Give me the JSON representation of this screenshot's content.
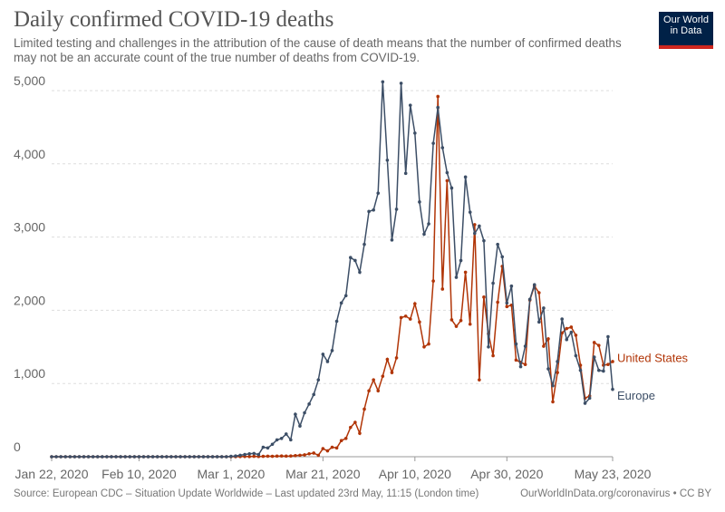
{
  "chart_data": {
    "type": "line",
    "title": "Daily confirmed COVID-19 deaths",
    "subtitle": "Limited testing and challenges in the attribution of the cause of death means that the number of confirmed deaths may not be an accurate count of the true number of deaths from COVID-19.",
    "logo": [
      "Our World",
      "in Data"
    ],
    "source": "Source: European CDC – Situation Update Worldwide – Last updated 23rd May, 11:15 (London time)",
    "license": "OurWorldInData.org/coronavirus • CC BY",
    "x": [
      "2020-01-22",
      "2020-01-23",
      "2020-01-24",
      "2020-01-25",
      "2020-01-26",
      "2020-01-27",
      "2020-01-28",
      "2020-01-29",
      "2020-01-30",
      "2020-01-31",
      "2020-02-01",
      "2020-02-02",
      "2020-02-03",
      "2020-02-04",
      "2020-02-05",
      "2020-02-06",
      "2020-02-07",
      "2020-02-08",
      "2020-02-09",
      "2020-02-10",
      "2020-02-11",
      "2020-02-12",
      "2020-02-13",
      "2020-02-14",
      "2020-02-15",
      "2020-02-16",
      "2020-02-17",
      "2020-02-18",
      "2020-02-19",
      "2020-02-20",
      "2020-02-21",
      "2020-02-22",
      "2020-02-23",
      "2020-02-24",
      "2020-02-25",
      "2020-02-26",
      "2020-02-27",
      "2020-02-28",
      "2020-02-29",
      "2020-03-01",
      "2020-03-02",
      "2020-03-03",
      "2020-03-04",
      "2020-03-05",
      "2020-03-06",
      "2020-03-07",
      "2020-03-08",
      "2020-03-09",
      "2020-03-10",
      "2020-03-11",
      "2020-03-12",
      "2020-03-13",
      "2020-03-14",
      "2020-03-15",
      "2020-03-16",
      "2020-03-17",
      "2020-03-18",
      "2020-03-19",
      "2020-03-20",
      "2020-03-21",
      "2020-03-22",
      "2020-03-23",
      "2020-03-24",
      "2020-03-25",
      "2020-03-26",
      "2020-03-27",
      "2020-03-28",
      "2020-03-29",
      "2020-03-30",
      "2020-03-31",
      "2020-04-01",
      "2020-04-02",
      "2020-04-03",
      "2020-04-04",
      "2020-04-05",
      "2020-04-06",
      "2020-04-07",
      "2020-04-08",
      "2020-04-09",
      "2020-04-10",
      "2020-04-11",
      "2020-04-12",
      "2020-04-13",
      "2020-04-14",
      "2020-04-15",
      "2020-04-16",
      "2020-04-17",
      "2020-04-18",
      "2020-04-19",
      "2020-04-20",
      "2020-04-21",
      "2020-04-22",
      "2020-04-23",
      "2020-04-24",
      "2020-04-25",
      "2020-04-26",
      "2020-04-27",
      "2020-04-28",
      "2020-04-29",
      "2020-04-30",
      "2020-05-01",
      "2020-05-02",
      "2020-05-03",
      "2020-05-04",
      "2020-05-05",
      "2020-05-06",
      "2020-05-07",
      "2020-05-08",
      "2020-05-09",
      "2020-05-10",
      "2020-05-11",
      "2020-05-12",
      "2020-05-13",
      "2020-05-14",
      "2020-05-15",
      "2020-05-16",
      "2020-05-17",
      "2020-05-18",
      "2020-05-19",
      "2020-05-20",
      "2020-05-21",
      "2020-05-22",
      "2020-05-23"
    ],
    "series": [
      {
        "name": "United States",
        "color": "#b13507",
        "values": [
          0,
          0,
          0,
          0,
          0,
          0,
          0,
          0,
          0,
          0,
          0,
          0,
          0,
          0,
          0,
          0,
          0,
          0,
          0,
          0,
          0,
          0,
          0,
          0,
          0,
          0,
          0,
          0,
          0,
          0,
          0,
          0,
          0,
          0,
          0,
          0,
          0,
          0,
          0,
          1,
          0,
          2,
          3,
          2,
          5,
          3,
          5,
          7,
          6,
          8,
          10,
          8,
          10,
          15,
          20,
          25,
          40,
          50,
          20,
          110,
          80,
          130,
          120,
          220,
          250,
          400,
          470,
          320,
          650,
          900,
          1050,
          900,
          1100,
          1330,
          1150,
          1350,
          1900,
          1920,
          1880,
          2090,
          1840,
          1500,
          1540,
          2400,
          4920,
          2290,
          3770,
          1870,
          1780,
          1860,
          2520,
          1810,
          3170,
          1050,
          2180,
          1680,
          1380,
          2110,
          2600,
          2050,
          2070,
          1320,
          1290,
          1260,
          2140,
          2330,
          2240,
          1510,
          1610,
          750,
          1150,
          1690,
          1750,
          1770,
          1660,
          1250,
          800,
          830,
          1560,
          1520,
          1250,
          1260,
          1300
        ]
      },
      {
        "name": "Europe",
        "color": "#3c4e66",
        "values": [
          0,
          0,
          0,
          0,
          0,
          0,
          0,
          0,
          0,
          0,
          0,
          0,
          0,
          0,
          0,
          0,
          0,
          0,
          0,
          0,
          0,
          0,
          0,
          0,
          0,
          0,
          0,
          0,
          0,
          0,
          0,
          0,
          0,
          0,
          0,
          0,
          0,
          0,
          0,
          5,
          10,
          20,
          30,
          40,
          45,
          30,
          130,
          120,
          170,
          230,
          250,
          310,
          230,
          580,
          420,
          600,
          720,
          850,
          1050,
          1400,
          1300,
          1450,
          1850,
          2100,
          2200,
          2720,
          2680,
          2520,
          2900,
          3350,
          3370,
          3600,
          5120,
          4050,
          2960,
          3380,
          5100,
          3870,
          4800,
          4420,
          3480,
          3040,
          3180,
          4280,
          4770,
          4220,
          3880,
          3670,
          2450,
          2680,
          3820,
          3340,
          3050,
          3150,
          2950,
          1500,
          2370,
          2900,
          2730,
          2100,
          2330,
          1540,
          1230,
          1510,
          2150,
          2350,
          1840,
          2030,
          1200,
          970,
          1300,
          1880,
          1600,
          1700,
          1380,
          1180,
          730,
          800,
          1360,
          1180,
          1170,
          1640,
          920
        ]
      }
    ],
    "xlim": [
      "2020-01-22",
      "2020-05-23"
    ],
    "xticks": [
      {
        "value": "2020-01-22",
        "label": "Jan 22, 2020"
      },
      {
        "value": "2020-02-10",
        "label": "Feb 10, 2020"
      },
      {
        "value": "2020-03-01",
        "label": "Mar 1, 2020"
      },
      {
        "value": "2020-03-21",
        "label": "Mar 21, 2020"
      },
      {
        "value": "2020-04-10",
        "label": "Apr 10, 2020"
      },
      {
        "value": "2020-04-30",
        "label": "Apr 30, 2020"
      },
      {
        "value": "2020-05-23",
        "label": "May 23, 2020"
      }
    ],
    "ylim": [
      0,
      5000
    ],
    "yticks": [
      0,
      {
        "value": 1000,
        "label": "1,000"
      },
      {
        "value": 2000,
        "label": "2,000"
      },
      {
        "value": 3000,
        "label": "3,000"
      },
      {
        "value": 4000,
        "label": "4,000"
      },
      {
        "value": 5000,
        "label": "5,000"
      }
    ],
    "grid": true
  }
}
